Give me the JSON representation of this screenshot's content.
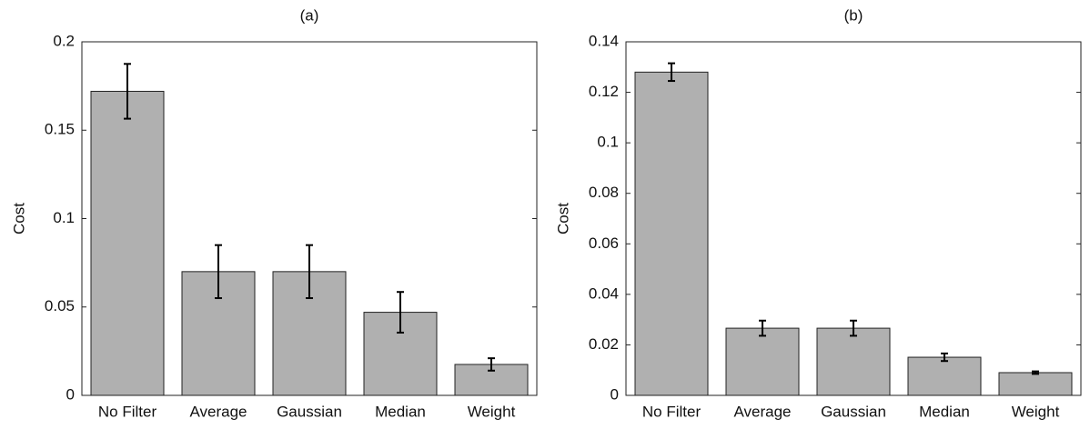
{
  "chart_data": [
    {
      "type": "bar",
      "title": "(a)",
      "ylabel": "Cost",
      "categories": [
        "No Filter",
        "Average",
        "Gaussian",
        "Median",
        "Weight"
      ],
      "values": [
        0.172,
        0.07,
        0.07,
        0.047,
        0.0175
      ],
      "errors": [
        0.0155,
        0.015,
        0.015,
        0.0115,
        0.0035
      ],
      "color": "#b0b0b0",
      "ylim": [
        0,
        0.2
      ],
      "yticks": [
        0,
        0.05,
        0.1,
        0.15,
        0.2
      ]
    },
    {
      "type": "bar",
      "title": "(b)",
      "ylabel": "Cost",
      "categories": [
        "No Filter",
        "Average",
        "Gaussian",
        "Median",
        "Weight"
      ],
      "values": [
        0.128,
        0.0266,
        0.0266,
        0.0151,
        0.009
      ],
      "errors": [
        0.0035,
        0.003,
        0.003,
        0.0015,
        0.0005
      ],
      "color": "#b0b0b0",
      "ylim": [
        0,
        0.14
      ],
      "yticks": [
        0,
        0.02,
        0.04,
        0.06,
        0.08,
        0.1,
        0.12,
        0.14
      ]
    }
  ]
}
